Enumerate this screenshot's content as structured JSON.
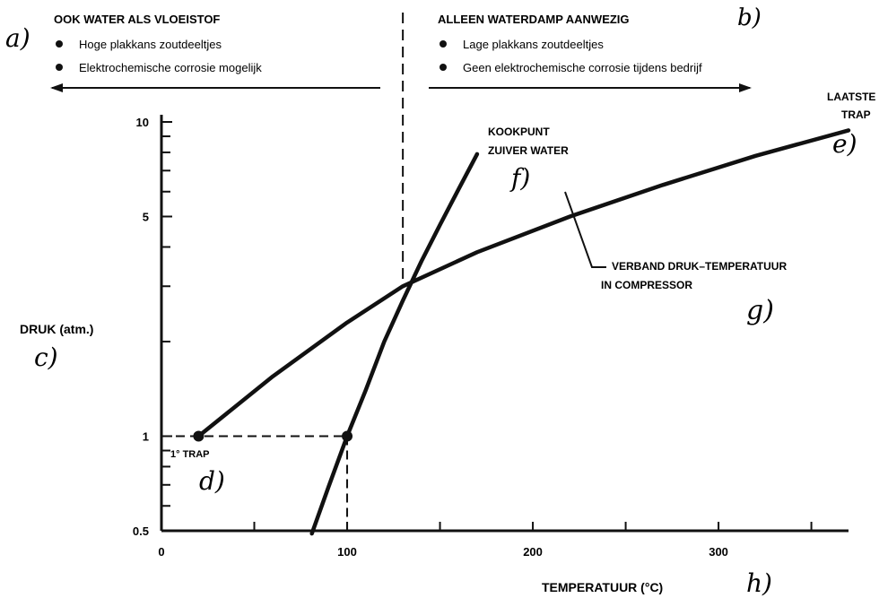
{
  "annotations": {
    "a": "a)",
    "b": "b)",
    "c": "c)",
    "d": "d)",
    "e": "e)",
    "f": "f)",
    "g": "g)",
    "h": "h)"
  },
  "regions": {
    "left": {
      "title": "OOK WATER ALS VLOEISTOF",
      "bullets": [
        "Hoge plakkans zoutdeeltjes",
        "Elektrochemische corrosie mogelijk"
      ]
    },
    "right": {
      "title": "ALLEEN WATERDAMP AANWEZIG",
      "bullets": [
        "Lage plakkans zoutdeeltjes",
        "Geen elektrochemische corrosie tijdens bedrijf"
      ]
    }
  },
  "chart_data": {
    "type": "line",
    "xlabel": "TEMPERATUUR (°C)",
    "ylabel": "DRUK (atm.)",
    "x_ticks": [
      0,
      100,
      200,
      300
    ],
    "y_ticks": [
      0.5,
      1,
      5,
      10
    ],
    "y_scale": "log",
    "xlim": [
      0,
      370
    ],
    "ylim": [
      0.5,
      10
    ],
    "divider_x": 130,
    "series": [
      {
        "key": "compressor",
        "labels": [
          "VERBAND DRUK–TEMPERATUUR",
          "IN COMPRESSOR"
        ],
        "x": [
          20,
          60,
          100,
          130,
          170,
          220,
          270,
          320,
          370
        ],
        "y": [
          1.0,
          1.55,
          2.3,
          3.0,
          3.85,
          5.0,
          6.3,
          7.8,
          9.4
        ]
      },
      {
        "key": "boiling",
        "labels": [
          "KOOKPUNT",
          "ZUIVER WATER"
        ],
        "x": [
          81,
          90,
          100,
          110,
          120,
          130,
          140,
          150,
          160,
          170
        ],
        "y": [
          0.49,
          0.69,
          1.0,
          1.4,
          2.0,
          2.7,
          3.6,
          4.7,
          6.1,
          7.9
        ]
      }
    ],
    "points": [
      {
        "x": 20,
        "y": 1.0,
        "label": "1° TRAP"
      },
      {
        "x": 100,
        "y": 1.0,
        "label": ""
      }
    ],
    "end_label": [
      "LAATSTE",
      "TRAP"
    ]
  }
}
